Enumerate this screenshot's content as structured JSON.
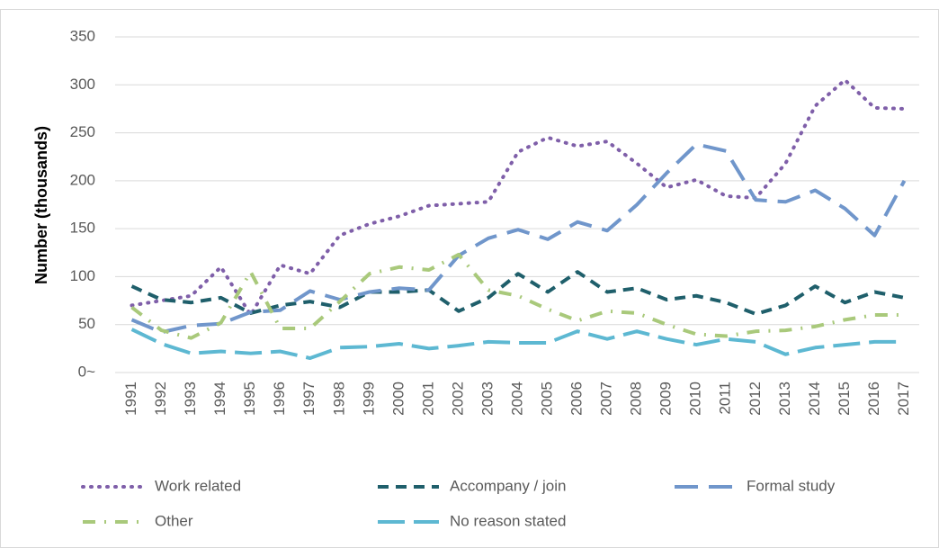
{
  "chart_data": {
    "type": "line",
    "y_label": "Number (thousands)",
    "categories": [
      "1991",
      "1992",
      "1993",
      "1994",
      "1995",
      "1996",
      "1997",
      "1998",
      "1999",
      "2000",
      "2001",
      "2002",
      "2003",
      "2004",
      "2005",
      "2006",
      "2007",
      "2008",
      "2009",
      "2010",
      "2011",
      "2012",
      "2013",
      "2014",
      "2015",
      "2016",
      "2017"
    ],
    "series": [
      {
        "name": "Work related",
        "color": "#7f5fa9",
        "values": [
          70,
          75,
          80,
          110,
          60,
          112,
          103,
          143,
          155,
          163,
          174,
          176,
          178,
          230,
          245,
          236,
          241,
          218,
          193,
          201,
          184,
          182,
          218,
          278,
          305,
          276,
          275
        ]
      },
      {
        "name": "Accompany / join",
        "color": "#1f5f6b",
        "values": [
          90,
          76,
          73,
          78,
          62,
          70,
          74,
          68,
          84,
          84,
          86,
          64,
          78,
          103,
          84,
          105,
          84,
          88,
          76,
          80,
          73,
          61,
          70,
          90,
          73,
          84,
          78
        ]
      },
      {
        "name": "Formal study",
        "color": "#7096cb",
        "values": [
          55,
          42,
          49,
          51,
          63,
          65,
          85,
          76,
          84,
          88,
          86,
          122,
          140,
          149,
          139,
          157,
          148,
          175,
          208,
          238,
          231,
          180,
          178,
          190,
          171,
          143,
          200
        ]
      },
      {
        "name": "Other",
        "color": "#a9c97b",
        "values": [
          68,
          44,
          36,
          52,
          105,
          46,
          46,
          74,
          103,
          110,
          107,
          123,
          86,
          80,
          66,
          54,
          64,
          62,
          50,
          40,
          38,
          43,
          44,
          48,
          55,
          60,
          60
        ]
      },
      {
        "name": "No reason stated",
        "color": "#5db8d2",
        "values": [
          45,
          30,
          20,
          22,
          20,
          22,
          15,
          26,
          27,
          30,
          25,
          28,
          32,
          31,
          31,
          43,
          35,
          43,
          35,
          29,
          35,
          32,
          19,
          26,
          29,
          32,
          32
        ]
      }
    ],
    "ylim": [
      0,
      350
    ],
    "yticks": [
      {
        "value": 0,
        "label": "0~"
      },
      50,
      100,
      150,
      200,
      250,
      300,
      350
    ],
    "grid": true,
    "legend": "bottom"
  }
}
